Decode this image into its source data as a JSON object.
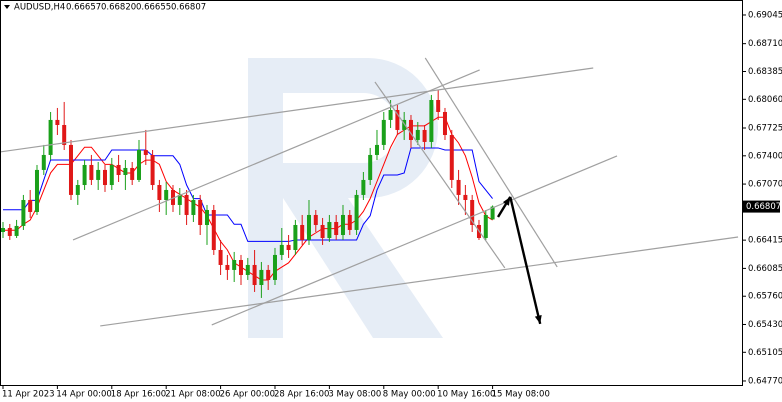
{
  "chart_data": {
    "type": "candlestick",
    "header": {
      "symbol": "AUDUSD,H4",
      "ohlc": [
        "0.66657",
        "0.66820",
        "0.66655",
        "0.66807"
      ]
    },
    "xlim": [
      -0.44,
      108.68
    ],
    "xticks": [
      {
        "value": 0,
        "label": "11 Apr 2023"
      },
      {
        "value": 8,
        "label": "14 Apr 00:00"
      },
      {
        "value": 16,
        "label": "18 Apr 16:00"
      },
      {
        "value": 24,
        "label": "21 Apr 08:00"
      },
      {
        "value": 32,
        "label": "26 Apr 00:00"
      },
      {
        "value": 40,
        "label": "28 Apr 16:00"
      },
      {
        "value": 48,
        "label": "3 May 08:00"
      },
      {
        "value": 56,
        "label": "8 May 00:00"
      },
      {
        "value": 64,
        "label": "10 May 16:00"
      },
      {
        "value": 72,
        "label": "15 May 08:00"
      }
    ],
    "ylim": [
      0.64723,
      0.6922
    ],
    "yticks": [
      0.69045,
      {
        "value": 0.6871,
        "label": "0.68710"
      },
      0.68385,
      {
        "value": 0.6806,
        "label": "0.68060"
      },
      0.67725,
      {
        "value": 0.674,
        "label": "0.67400"
      },
      {
        "value": 0.6707,
        "label": "0.67070"
      },
      0.66415,
      0.66085,
      {
        "value": 0.6576,
        "label": "0.65760"
      },
      {
        "value": 0.6543,
        "label": "0.65430"
      },
      0.65105,
      {
        "value": 0.6477,
        "label": "0.64770"
      }
    ],
    "up_color": "#1aa01a",
    "down_color": "#e01818",
    "candles": [
      [
        0.6651,
        0.66627,
        0.6644,
        0.66557
      ],
      [
        0.66557,
        0.66604,
        0.66417,
        0.66464
      ],
      [
        0.66464,
        0.66651,
        0.6644,
        0.66581
      ],
      [
        0.66581,
        0.66943,
        0.66534,
        0.66884
      ],
      [
        0.66884,
        0.67001,
        0.66674,
        0.66744
      ],
      [
        0.66744,
        0.67293,
        0.66709,
        0.67235
      ],
      [
        0.67235,
        0.67527,
        0.67176,
        0.6741
      ],
      [
        0.6741,
        0.67912,
        0.67351,
        0.67819
      ],
      [
        0.67819,
        0.67959,
        0.67643,
        0.6776
      ],
      [
        0.6776,
        0.68029,
        0.67468,
        0.67527
      ],
      [
        0.67527,
        0.67585,
        0.66884,
        0.66943
      ],
      [
        0.66943,
        0.67118,
        0.66826,
        0.67059
      ],
      [
        0.67059,
        0.67351,
        0.67001,
        0.67293
      ],
      [
        0.67293,
        0.6741,
        0.67059,
        0.67118
      ],
      [
        0.67118,
        0.67328,
        0.67001,
        0.67235
      ],
      [
        0.67235,
        0.67293,
        0.66978,
        0.67059
      ],
      [
        0.67059,
        0.67375,
        0.67001,
        0.67293
      ],
      [
        0.67293,
        0.6741,
        0.67094,
        0.67176
      ],
      [
        0.67176,
        0.67351,
        0.67001,
        0.67258
      ],
      [
        0.67258,
        0.67328,
        0.67059,
        0.67118
      ],
      [
        0.67118,
        0.67585,
        0.67094,
        0.67468
      ],
      [
        0.67468,
        0.67702,
        0.67293,
        0.6741
      ],
      [
        0.6741,
        0.67468,
        0.67001,
        0.67059
      ],
      [
        0.67059,
        0.67118,
        0.66744,
        0.66884
      ],
      [
        0.66884,
        0.67094,
        0.66709,
        0.67001
      ],
      [
        0.67001,
        0.67059,
        0.66744,
        0.66826
      ],
      [
        0.66826,
        0.67024,
        0.66709,
        0.66943
      ],
      [
        0.66943,
        0.67001,
        0.66592,
        0.66709
      ],
      [
        0.66709,
        0.66943,
        0.66627,
        0.66884
      ],
      [
        0.66884,
        0.66943,
        0.66475,
        0.66592
      ],
      [
        0.66592,
        0.66826,
        0.66359,
        0.66767
      ],
      [
        0.66767,
        0.66826,
        0.66242,
        0.663
      ],
      [
        0.663,
        0.66417,
        0.66008,
        0.66125
      ],
      [
        0.66125,
        0.66242,
        0.6595,
        0.66067
      ],
      [
        0.66067,
        0.66277,
        0.65926,
        0.66183
      ],
      [
        0.66183,
        0.66242,
        0.65891,
        0.66008
      ],
      [
        0.66008,
        0.66207,
        0.6595,
        0.66125
      ],
      [
        0.66125,
        0.663,
        0.6581,
        0.65891
      ],
      [
        0.65891,
        0.6616,
        0.6574,
        0.66067
      ],
      [
        0.66067,
        0.66125,
        0.65833,
        0.6595
      ],
      [
        0.6595,
        0.66324,
        0.65891,
        0.66242
      ],
      [
        0.66242,
        0.66557,
        0.66183,
        0.66359
      ],
      [
        0.66359,
        0.66475,
        0.66207,
        0.663
      ],
      [
        0.663,
        0.66651,
        0.66242,
        0.66592
      ],
      [
        0.66592,
        0.66709,
        0.66359,
        0.66417
      ],
      [
        0.66417,
        0.66884,
        0.66359,
        0.66709
      ],
      [
        0.66709,
        0.66767,
        0.6651,
        0.66592
      ],
      [
        0.66592,
        0.66674,
        0.66359,
        0.6644
      ],
      [
        0.6644,
        0.66709,
        0.66394,
        0.66627
      ],
      [
        0.66627,
        0.66709,
        0.66417,
        0.66475
      ],
      [
        0.66475,
        0.66826,
        0.66417,
        0.66709
      ],
      [
        0.66709,
        0.66767,
        0.66475,
        0.66534
      ],
      [
        0.66534,
        0.67001,
        0.66475,
        0.66943
      ],
      [
        0.66943,
        0.67211,
        0.66884,
        0.67118
      ],
      [
        0.67118,
        0.67492,
        0.67059,
        0.6741
      ],
      [
        0.6741,
        0.67702,
        0.67351,
        0.67527
      ],
      [
        0.67527,
        0.67912,
        0.67468,
        0.67819
      ],
      [
        0.67819,
        0.68052,
        0.67725,
        0.67935
      ],
      [
        0.67935,
        0.67994,
        0.67643,
        0.67702
      ],
      [
        0.67702,
        0.67912,
        0.67585,
        0.67819
      ],
      [
        0.67819,
        0.67877,
        0.67492,
        0.67585
      ],
      [
        0.67585,
        0.67795,
        0.67527,
        0.67702
      ],
      [
        0.67702,
        0.6776,
        0.67468,
        0.67562
      ],
      [
        0.67562,
        0.68111,
        0.67492,
        0.68052
      ],
      [
        0.68052,
        0.68169,
        0.67819,
        0.67912
      ],
      [
        0.67912,
        0.67959,
        0.67585,
        0.67643
      ],
      [
        0.67643,
        0.67702,
        0.67024,
        0.67118
      ],
      [
        0.67118,
        0.67235,
        0.66826,
        0.66943
      ],
      [
        0.66943,
        0.67059,
        0.66709,
        0.66884
      ],
      [
        0.66884,
        0.66943,
        0.6651,
        0.66592
      ],
      [
        0.66592,
        0.66651,
        0.66417,
        0.6644
      ],
      [
        0.6644,
        0.66767,
        0.66417,
        0.66709
      ],
      [
        0.66657,
        0.6682,
        0.66655,
        0.66807
      ]
    ],
    "series": [
      {
        "color": "#ff0000",
        "values": [
          0.6653,
          0.6653,
          0.6653,
          0.666,
          0.6665,
          0.668,
          0.67,
          0.672,
          0.673,
          0.673,
          0.673,
          0.674,
          0.675,
          0.675,
          0.674,
          0.673,
          0.673,
          0.6725,
          0.672,
          0.672,
          0.673,
          0.6735,
          0.6735,
          0.673,
          0.671,
          0.67,
          0.6695,
          0.669,
          0.6685,
          0.668,
          0.667,
          0.6655,
          0.664,
          0.663,
          0.6615,
          0.661,
          0.6605,
          0.66,
          0.6595,
          0.6595,
          0.6605,
          0.661,
          0.6615,
          0.6625,
          0.6635,
          0.6645,
          0.665,
          0.6655,
          0.6655,
          0.6655,
          0.666,
          0.666,
          0.6665,
          0.6675,
          0.669,
          0.671,
          0.673,
          0.675,
          0.6765,
          0.677,
          0.6775,
          0.6775,
          0.6775,
          0.678,
          0.6785,
          0.6785,
          0.6765,
          0.6755,
          0.674,
          0.6715,
          0.6685,
          0.667,
          0.6665
        ]
      },
      {
        "color": "#0000ff",
        "values": [
          0.6677,
          0.6677,
          0.6677,
          0.6677,
          0.6688,
          0.6688,
          0.67118,
          0.67351,
          0.67351,
          0.67351,
          0.67351,
          0.67351,
          0.67351,
          0.67351,
          0.67351,
          0.67351,
          0.67468,
          0.67468,
          0.67468,
          0.67468,
          0.67468,
          0.67468,
          0.674,
          0.674,
          0.674,
          0.674,
          0.673,
          0.67059,
          0.669,
          0.669,
          0.66709,
          0.66709,
          0.66709,
          0.66709,
          0.666,
          0.666,
          0.664,
          0.664,
          0.664,
          0.664,
          0.664,
          0.664,
          0.664,
          0.66417,
          0.66417,
          0.66417,
          0.66417,
          0.66417,
          0.66417,
          0.66417,
          0.66417,
          0.66417,
          0.66417,
          0.666,
          0.667,
          0.67,
          0.67176,
          0.67176,
          0.67176,
          0.672,
          0.67492,
          0.67492,
          0.67492,
          0.67492,
          0.67492,
          0.67468,
          0.67468,
          0.67468,
          0.67468,
          0.67468,
          0.671,
          0.67,
          0.669
        ]
      }
    ],
    "trendlines": {
      "color": "#a0a0a0",
      "lines": [
        {
          "x": [
            -0.44,
            86.8
          ],
          "y": [
            0.67445,
            0.68426
          ]
        },
        {
          "x": [
            10.3,
            70.1
          ],
          "y": [
            0.66417,
            0.68403
          ]
        },
        {
          "x": [
            14.3,
            108.1
          ],
          "y": [
            0.65413,
            0.66452
          ]
        },
        {
          "x": [
            30.7,
            90.3
          ],
          "y": [
            0.65425,
            0.67398
          ]
        },
        {
          "x": [
            54.7,
            73.8
          ],
          "y": [
            0.68263,
            0.6609
          ]
        },
        {
          "x": [
            62.1,
            81.5
          ],
          "y": [
            0.68543,
            0.66102
          ]
        }
      ]
    },
    "arrows": {
      "color": "#000000",
      "lines": [
        {
          "x": [
            72.8,
            74.6
          ],
          "y": [
            0.66686,
            0.6692
          ]
        },
        {
          "x": [
            74.6,
            79.0
          ],
          "y": [
            0.6692,
            0.65437
          ]
        }
      ]
    },
    "price_label": {
      "value": 0.66807,
      "label": "0.66807"
    }
  }
}
